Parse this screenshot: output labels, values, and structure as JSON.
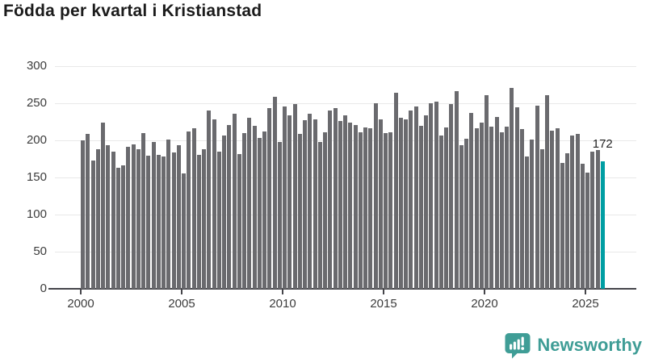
{
  "title": "Födda per kvartal i Kristianstad",
  "branding": {
    "wordmark": "Newsworthy",
    "icon": "newsworthy-speech-bubble-bar-chart-icon",
    "color": "#3f9d96"
  },
  "colors": {
    "bar": "#6a6a6e",
    "highlight": "#009ea3",
    "grid": "#e9e9e9",
    "axis": "#45454a",
    "text": "#3c3c3c",
    "title": "#1b1b1b"
  },
  "chart_data": {
    "type": "bar",
    "title": "Födda per kvartal i Kristianstad",
    "xlabel": "",
    "ylabel": "",
    "ylim": [
      0,
      300
    ],
    "y_ticks": [
      0,
      50,
      100,
      150,
      200,
      250,
      300
    ],
    "x_ticks": [
      "2000",
      "2005",
      "2010",
      "2015",
      "2020",
      "2025"
    ],
    "grid": true,
    "legend": false,
    "bar_color": "#6a6a6e",
    "categories": [
      "2000 Q1",
      "2000 Q2",
      "2000 Q3",
      "2000 Q4",
      "2001 Q1",
      "2001 Q2",
      "2001 Q3",
      "2001 Q4",
      "2002 Q1",
      "2002 Q2",
      "2002 Q3",
      "2002 Q4",
      "2003 Q1",
      "2003 Q2",
      "2003 Q3",
      "2003 Q4",
      "2004 Q1",
      "2004 Q2",
      "2004 Q3",
      "2004 Q4",
      "2005 Q1",
      "2005 Q2",
      "2005 Q3",
      "2005 Q4",
      "2006 Q1",
      "2006 Q2",
      "2006 Q3",
      "2006 Q4",
      "2007 Q1",
      "2007 Q2",
      "2007 Q3",
      "2007 Q4",
      "2008 Q1",
      "2008 Q2",
      "2008 Q3",
      "2008 Q4",
      "2009 Q1",
      "2009 Q2",
      "2009 Q3",
      "2009 Q4",
      "2010 Q1",
      "2010 Q2",
      "2010 Q3",
      "2010 Q4",
      "2011 Q1",
      "2011 Q2",
      "2011 Q3",
      "2011 Q4",
      "2012 Q1",
      "2012 Q2",
      "2012 Q3",
      "2012 Q4",
      "2013 Q1",
      "2013 Q2",
      "2013 Q3",
      "2013 Q4",
      "2014 Q1",
      "2014 Q2",
      "2014 Q3",
      "2014 Q4",
      "2015 Q1",
      "2015 Q2",
      "2015 Q3",
      "2015 Q4",
      "2016 Q1",
      "2016 Q2",
      "2016 Q3",
      "2016 Q4",
      "2017 Q1",
      "2017 Q2",
      "2017 Q3",
      "2017 Q4",
      "2018 Q1",
      "2018 Q2",
      "2018 Q3",
      "2018 Q4",
      "2019 Q1",
      "2019 Q2",
      "2019 Q3",
      "2019 Q4",
      "2020 Q1",
      "2020 Q2",
      "2020 Q3",
      "2020 Q4",
      "2021 Q1",
      "2021 Q2",
      "2021 Q3",
      "2021 Q4",
      "2022 Q1",
      "2022 Q2",
      "2022 Q3",
      "2022 Q4",
      "2023 Q1",
      "2023 Q2",
      "2023 Q3",
      "2023 Q4",
      "2024 Q1",
      "2024 Q2",
      "2024 Q3",
      "2024 Q4",
      "2025 Q1",
      "2025 Q2",
      "2025 Q3",
      "2025 Q4"
    ],
    "values": [
      200,
      209,
      173,
      188,
      224,
      194,
      185,
      163,
      166,
      191,
      195,
      188,
      210,
      179,
      198,
      180,
      178,
      201,
      184,
      194,
      155,
      212,
      216,
      180,
      188,
      240,
      228,
      185,
      206,
      221,
      236,
      182,
      210,
      230,
      220,
      203,
      212,
      244,
      259,
      198,
      246,
      234,
      249,
      209,
      227,
      236,
      228,
      198,
      211,
      240,
      243,
      226,
      234,
      224,
      221,
      211,
      217,
      216,
      250,
      228,
      210,
      211,
      264,
      230,
      228,
      240,
      246,
      220,
      234,
      250,
      252,
      207,
      217,
      249,
      266,
      193,
      202,
      237,
      216,
      224,
      261,
      218,
      231,
      211,
      219,
      271,
      245,
      215,
      178,
      201,
      247,
      188,
      261,
      213,
      216,
      170,
      183,
      207,
      209,
      168,
      156,
      185,
      187,
      172
    ],
    "highlight": {
      "index": 103,
      "label": "172",
      "color": "#009ea3"
    }
  }
}
